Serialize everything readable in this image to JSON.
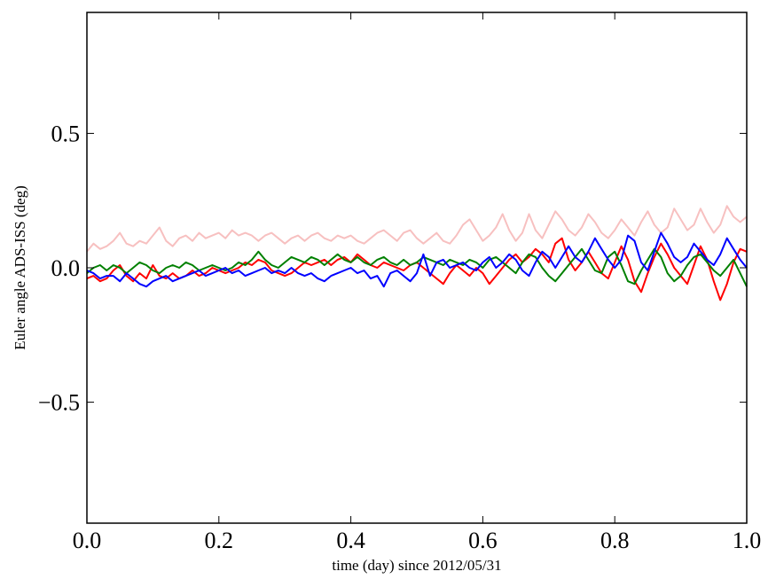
{
  "chart_data": {
    "type": "line",
    "title": "",
    "xlabel": "time (day) since 2012/05/31",
    "ylabel": "Euler angle ADS-ISS (deg)",
    "xlim": [
      0.0,
      1.0
    ],
    "ylim": [
      -0.95,
      0.95
    ],
    "xticks": [
      0.0,
      0.2,
      0.4,
      0.6,
      0.8,
      1.0
    ],
    "xtick_labels": [
      "0.0",
      "0.2",
      "0.4",
      "0.6",
      "0.8",
      "1.0"
    ],
    "yticks": [
      -0.5,
      0.0,
      0.5
    ],
    "ytick_labels": [
      "−0.5",
      "0.0",
      "0.5"
    ],
    "grid": false,
    "legend": "none",
    "series": [
      {
        "color": "#f7c0c0",
        "x": [
          0.0,
          0.01,
          0.02,
          0.03,
          0.04,
          0.05,
          0.06,
          0.07,
          0.08,
          0.09,
          0.1,
          0.11,
          0.12,
          0.13,
          0.14,
          0.15,
          0.16,
          0.17,
          0.18,
          0.19,
          0.2,
          0.21,
          0.22,
          0.23,
          0.24,
          0.25,
          0.26,
          0.27,
          0.28,
          0.29,
          0.3,
          0.31,
          0.32,
          0.33,
          0.34,
          0.35,
          0.36,
          0.37,
          0.38,
          0.39,
          0.4,
          0.41,
          0.42,
          0.43,
          0.44,
          0.45,
          0.46,
          0.47,
          0.48,
          0.49,
          0.5,
          0.51,
          0.52,
          0.53,
          0.54,
          0.55,
          0.56,
          0.57,
          0.58,
          0.59,
          0.6,
          0.61,
          0.62,
          0.63,
          0.64,
          0.65,
          0.66,
          0.67,
          0.68,
          0.69,
          0.7,
          0.71,
          0.72,
          0.73,
          0.74,
          0.75,
          0.76,
          0.77,
          0.78,
          0.79,
          0.8,
          0.81,
          0.82,
          0.83,
          0.84,
          0.85,
          0.86,
          0.87,
          0.88,
          0.89,
          0.9,
          0.91,
          0.92,
          0.93,
          0.94,
          0.95,
          0.96,
          0.97,
          0.98,
          0.99,
          1.0
        ],
        "y": [
          0.06,
          0.09,
          0.07,
          0.08,
          0.1,
          0.13,
          0.09,
          0.08,
          0.1,
          0.09,
          0.12,
          0.15,
          0.1,
          0.08,
          0.11,
          0.12,
          0.1,
          0.13,
          0.11,
          0.12,
          0.13,
          0.11,
          0.14,
          0.12,
          0.13,
          0.12,
          0.1,
          0.12,
          0.13,
          0.11,
          0.09,
          0.11,
          0.12,
          0.1,
          0.12,
          0.13,
          0.11,
          0.1,
          0.12,
          0.11,
          0.12,
          0.1,
          0.09,
          0.11,
          0.13,
          0.14,
          0.12,
          0.1,
          0.13,
          0.14,
          0.11,
          0.09,
          0.11,
          0.13,
          0.1,
          0.09,
          0.12,
          0.16,
          0.18,
          0.14,
          0.1,
          0.12,
          0.15,
          0.2,
          0.14,
          0.1,
          0.13,
          0.2,
          0.14,
          0.11,
          0.16,
          0.21,
          0.18,
          0.14,
          0.12,
          0.15,
          0.2,
          0.17,
          0.13,
          0.11,
          0.14,
          0.18,
          0.15,
          0.12,
          0.17,
          0.21,
          0.16,
          0.13,
          0.15,
          0.22,
          0.18,
          0.14,
          0.16,
          0.22,
          0.17,
          0.13,
          0.16,
          0.23,
          0.19,
          0.17,
          0.19
        ]
      },
      {
        "color": "#ff0000",
        "x": [
          0.0,
          0.01,
          0.02,
          0.03,
          0.04,
          0.05,
          0.06,
          0.07,
          0.08,
          0.09,
          0.1,
          0.11,
          0.12,
          0.13,
          0.14,
          0.15,
          0.16,
          0.17,
          0.18,
          0.19,
          0.2,
          0.21,
          0.22,
          0.23,
          0.24,
          0.25,
          0.26,
          0.27,
          0.28,
          0.29,
          0.3,
          0.31,
          0.32,
          0.33,
          0.34,
          0.35,
          0.36,
          0.37,
          0.38,
          0.39,
          0.4,
          0.41,
          0.42,
          0.43,
          0.44,
          0.45,
          0.46,
          0.47,
          0.48,
          0.49,
          0.5,
          0.51,
          0.52,
          0.53,
          0.54,
          0.55,
          0.56,
          0.57,
          0.58,
          0.59,
          0.6,
          0.61,
          0.62,
          0.63,
          0.64,
          0.65,
          0.66,
          0.67,
          0.68,
          0.69,
          0.7,
          0.71,
          0.72,
          0.73,
          0.74,
          0.75,
          0.76,
          0.77,
          0.78,
          0.79,
          0.8,
          0.81,
          0.82,
          0.83,
          0.84,
          0.85,
          0.86,
          0.87,
          0.88,
          0.89,
          0.9,
          0.91,
          0.92,
          0.93,
          0.94,
          0.95,
          0.96,
          0.97,
          0.98,
          0.99,
          1.0
        ],
        "y": [
          -0.04,
          -0.03,
          -0.05,
          -0.04,
          -0.01,
          0.01,
          -0.03,
          -0.05,
          -0.02,
          -0.04,
          0.01,
          -0.03,
          -0.04,
          -0.02,
          -0.04,
          -0.03,
          -0.01,
          -0.03,
          -0.02,
          0.0,
          -0.01,
          -0.02,
          -0.01,
          0.0,
          0.02,
          0.01,
          0.03,
          0.02,
          -0.01,
          -0.02,
          -0.03,
          -0.02,
          0.0,
          0.02,
          0.01,
          0.02,
          0.03,
          0.01,
          0.03,
          0.04,
          0.02,
          0.05,
          0.03,
          0.01,
          0.0,
          0.02,
          0.01,
          0.0,
          -0.01,
          0.01,
          0.02,
          0.0,
          -0.02,
          -0.04,
          -0.06,
          -0.02,
          0.01,
          -0.01,
          -0.03,
          0.0,
          -0.02,
          -0.06,
          -0.03,
          0.0,
          0.03,
          0.05,
          0.02,
          0.04,
          0.07,
          0.05,
          0.02,
          0.09,
          0.11,
          0.03,
          -0.01,
          0.02,
          0.06,
          0.02,
          -0.02,
          -0.04,
          0.02,
          0.08,
          0.03,
          -0.05,
          -0.09,
          -0.02,
          0.04,
          0.09,
          0.05,
          0.0,
          -0.03,
          -0.06,
          0.01,
          0.08,
          0.03,
          -0.05,
          -0.12,
          -0.06,
          0.02,
          0.07,
          0.06
        ]
      },
      {
        "color": "#008000",
        "x": [
          0.0,
          0.01,
          0.02,
          0.03,
          0.04,
          0.05,
          0.06,
          0.07,
          0.08,
          0.09,
          0.1,
          0.11,
          0.12,
          0.13,
          0.14,
          0.15,
          0.16,
          0.17,
          0.18,
          0.19,
          0.2,
          0.21,
          0.22,
          0.23,
          0.24,
          0.25,
          0.26,
          0.27,
          0.28,
          0.29,
          0.3,
          0.31,
          0.32,
          0.33,
          0.34,
          0.35,
          0.36,
          0.37,
          0.38,
          0.39,
          0.4,
          0.41,
          0.42,
          0.43,
          0.44,
          0.45,
          0.46,
          0.47,
          0.48,
          0.49,
          0.5,
          0.51,
          0.52,
          0.53,
          0.54,
          0.55,
          0.56,
          0.57,
          0.58,
          0.59,
          0.6,
          0.61,
          0.62,
          0.63,
          0.64,
          0.65,
          0.66,
          0.67,
          0.68,
          0.69,
          0.7,
          0.71,
          0.72,
          0.73,
          0.74,
          0.75,
          0.76,
          0.77,
          0.78,
          0.79,
          0.8,
          0.81,
          0.82,
          0.83,
          0.84,
          0.85,
          0.86,
          0.87,
          0.88,
          0.89,
          0.9,
          0.91,
          0.92,
          0.93,
          0.94,
          0.95,
          0.96,
          0.97,
          0.98,
          0.99,
          1.0
        ],
        "y": [
          -0.02,
          0.0,
          0.01,
          -0.01,
          0.01,
          0.0,
          -0.02,
          0.0,
          0.02,
          0.01,
          -0.01,
          -0.02,
          0.0,
          0.01,
          0.0,
          0.02,
          0.01,
          -0.01,
          0.0,
          0.01,
          0.0,
          -0.01,
          0.0,
          0.02,
          0.01,
          0.03,
          0.06,
          0.03,
          0.01,
          0.0,
          0.02,
          0.04,
          0.03,
          0.02,
          0.04,
          0.03,
          0.01,
          0.03,
          0.05,
          0.03,
          0.02,
          0.04,
          0.02,
          0.01,
          0.03,
          0.04,
          0.02,
          0.01,
          0.03,
          0.01,
          0.02,
          0.04,
          0.03,
          0.02,
          0.01,
          0.03,
          0.02,
          0.01,
          0.03,
          0.02,
          0.0,
          0.03,
          0.04,
          0.02,
          0.0,
          -0.02,
          0.02,
          0.05,
          0.04,
          0.0,
          -0.03,
          -0.05,
          -0.02,
          0.01,
          0.04,
          0.07,
          0.03,
          -0.01,
          -0.02,
          0.04,
          0.06,
          0.01,
          -0.05,
          -0.06,
          -0.01,
          0.03,
          0.07,
          0.04,
          -0.02,
          -0.05,
          -0.03,
          0.01,
          0.04,
          0.05,
          0.02,
          -0.01,
          -0.03,
          0.0,
          0.03,
          -0.02,
          -0.07
        ]
      },
      {
        "color": "#0000ff",
        "x": [
          0.0,
          0.01,
          0.02,
          0.03,
          0.04,
          0.05,
          0.06,
          0.07,
          0.08,
          0.09,
          0.1,
          0.11,
          0.12,
          0.13,
          0.14,
          0.15,
          0.16,
          0.17,
          0.18,
          0.19,
          0.2,
          0.21,
          0.22,
          0.23,
          0.24,
          0.25,
          0.26,
          0.27,
          0.28,
          0.29,
          0.3,
          0.31,
          0.32,
          0.33,
          0.34,
          0.35,
          0.36,
          0.37,
          0.38,
          0.39,
          0.4,
          0.41,
          0.42,
          0.43,
          0.44,
          0.45,
          0.46,
          0.47,
          0.48,
          0.49,
          0.5,
          0.51,
          0.52,
          0.53,
          0.54,
          0.55,
          0.56,
          0.57,
          0.58,
          0.59,
          0.6,
          0.61,
          0.62,
          0.63,
          0.64,
          0.65,
          0.66,
          0.67,
          0.68,
          0.69,
          0.7,
          0.71,
          0.72,
          0.73,
          0.74,
          0.75,
          0.76,
          0.77,
          0.78,
          0.79,
          0.8,
          0.81,
          0.82,
          0.83,
          0.84,
          0.85,
          0.86,
          0.87,
          0.88,
          0.89,
          0.9,
          0.91,
          0.92,
          0.93,
          0.94,
          0.95,
          0.96,
          0.97,
          0.98,
          0.99,
          1.0
        ],
        "y": [
          -0.01,
          -0.02,
          -0.04,
          -0.03,
          -0.03,
          -0.05,
          -0.02,
          -0.04,
          -0.06,
          -0.07,
          -0.05,
          -0.04,
          -0.03,
          -0.05,
          -0.04,
          -0.03,
          -0.02,
          -0.01,
          -0.03,
          -0.02,
          -0.01,
          0.0,
          -0.02,
          -0.01,
          -0.03,
          -0.02,
          -0.01,
          0.0,
          -0.02,
          -0.01,
          -0.02,
          0.0,
          -0.02,
          -0.03,
          -0.02,
          -0.04,
          -0.05,
          -0.03,
          -0.02,
          -0.01,
          0.0,
          -0.02,
          -0.01,
          -0.04,
          -0.03,
          -0.07,
          -0.02,
          -0.01,
          -0.03,
          -0.05,
          -0.02,
          0.05,
          -0.03,
          0.02,
          0.03,
          0.0,
          0.01,
          0.02,
          0.0,
          -0.01,
          0.02,
          0.04,
          0.0,
          0.02,
          0.05,
          0.03,
          -0.01,
          -0.03,
          0.02,
          0.06,
          0.04,
          0.0,
          0.04,
          0.08,
          0.04,
          0.02,
          0.06,
          0.11,
          0.07,
          0.03,
          0.0,
          0.03,
          0.12,
          0.1,
          0.02,
          -0.01,
          0.06,
          0.13,
          0.09,
          0.04,
          0.02,
          0.04,
          0.09,
          0.06,
          0.03,
          0.01,
          0.05,
          0.11,
          0.07,
          0.03,
          0.0
        ]
      }
    ]
  }
}
